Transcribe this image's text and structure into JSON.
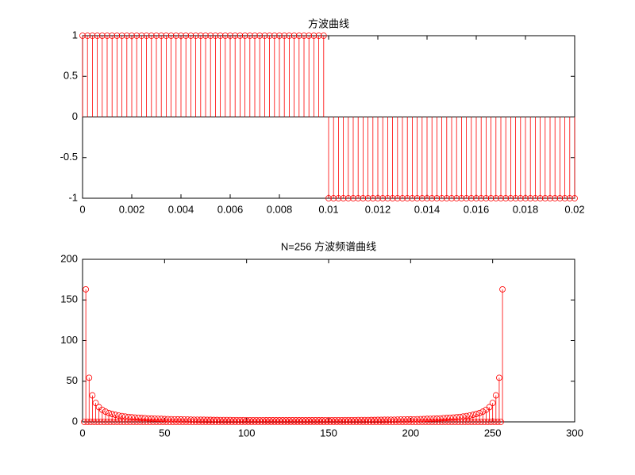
{
  "chart_data": [
    {
      "type": "stem",
      "title": "方波曲线",
      "color": "#ff0000",
      "x": [
        0,
        0.0002,
        0.0004,
        0.0006,
        0.0008,
        0.001,
        0.0012,
        0.0014,
        0.0016,
        0.0018,
        0.002,
        0.0022,
        0.0024,
        0.0026,
        0.0028,
        0.003,
        0.0032,
        0.0034,
        0.0036,
        0.0038,
        0.004,
        0.0042,
        0.0044,
        0.0046,
        0.0048,
        0.005,
        0.0052,
        0.0054,
        0.0056,
        0.0058,
        0.006,
        0.0062,
        0.0064,
        0.0066,
        0.0068,
        0.007,
        0.0072,
        0.0074,
        0.0076,
        0.0078,
        0.008,
        0.0082,
        0.0084,
        0.0086,
        0.0088,
        0.009,
        0.0092,
        0.0094,
        0.0096,
        0.0098,
        0.01,
        0.0102,
        0.0104,
        0.0106,
        0.0108,
        0.011,
        0.0112,
        0.0114,
        0.0116,
        0.0118,
        0.012,
        0.0122,
        0.0124,
        0.0126,
        0.0128,
        0.013,
        0.0132,
        0.0134,
        0.0136,
        0.0138,
        0.014,
        0.0142,
        0.0144,
        0.0146,
        0.0148,
        0.015,
        0.0152,
        0.0154,
        0.0156,
        0.0158,
        0.016,
        0.0162,
        0.0164,
        0.0166,
        0.0168,
        0.017,
        0.0172,
        0.0174,
        0.0176,
        0.0178,
        0.018,
        0.0182,
        0.0184,
        0.0186,
        0.0188,
        0.019,
        0.0192,
        0.0194,
        0.0196,
        0.0198,
        0.02
      ],
      "values": [
        1,
        1,
        1,
        1,
        1,
        1,
        1,
        1,
        1,
        1,
        1,
        1,
        1,
        1,
        1,
        1,
        1,
        1,
        1,
        1,
        1,
        1,
        1,
        1,
        1,
        1,
        1,
        1,
        1,
        1,
        1,
        1,
        1,
        1,
        1,
        1,
        1,
        1,
        1,
        1,
        1,
        1,
        1,
        1,
        1,
        1,
        1,
        1,
        1,
        1,
        -1,
        -1,
        -1,
        -1,
        -1,
        -1,
        -1,
        -1,
        -1,
        -1,
        -1,
        -1,
        -1,
        -1,
        -1,
        -1,
        -1,
        -1,
        -1,
        -1,
        -1,
        -1,
        -1,
        -1,
        -1,
        -1,
        -1,
        -1,
        -1,
        -1,
        -1,
        -1,
        -1,
        -1,
        -1,
        -1,
        -1,
        -1,
        -1,
        -1,
        -1,
        -1,
        -1,
        -1,
        -1,
        -1,
        -1,
        -1,
        -1,
        -1,
        -1
      ],
      "xlim": [
        0,
        0.02
      ],
      "xticks": [
        0,
        0.002,
        0.004,
        0.006,
        0.008,
        0.01,
        0.012,
        0.014,
        0.016,
        0.018,
        0.02
      ],
      "ylim": [
        -1,
        1
      ],
      "yticks": [
        -1,
        -0.5,
        0,
        0.5,
        1
      ]
    },
    {
      "type": "stem",
      "title": "N=256 方波频谱曲线",
      "color": "#ff0000",
      "x": [
        1,
        2,
        3,
        4,
        5,
        6,
        7,
        8,
        9,
        10,
        11,
        12,
        13,
        14,
        15,
        16,
        17,
        18,
        19,
        20,
        21,
        22,
        23,
        24,
        25,
        26,
        27,
        28,
        29,
        30,
        31,
        32,
        33,
        34,
        35,
        36,
        37,
        38,
        39,
        40,
        41,
        42,
        43,
        44,
        45,
        46,
        47,
        48,
        49,
        50,
        51,
        52,
        53,
        54,
        55,
        56,
        57,
        58,
        59,
        60,
        61,
        62,
        63,
        64,
        65,
        66,
        67,
        68,
        69,
        70,
        71,
        72,
        73,
        74,
        75,
        76,
        77,
        78,
        79,
        80,
        81,
        82,
        83,
        84,
        85,
        86,
        87,
        88,
        89,
        90,
        91,
        92,
        93,
        94,
        95,
        96,
        97,
        98,
        99,
        100,
        101,
        102,
        103,
        104,
        105,
        106,
        107,
        108,
        109,
        110,
        111,
        112,
        113,
        114,
        115,
        116,
        117,
        118,
        119,
        120,
        121,
        122,
        123,
        124,
        125,
        126,
        127,
        128,
        129,
        130,
        131,
        132,
        133,
        134,
        135,
        136,
        137,
        138,
        139,
        140,
        141,
        142,
        143,
        144,
        145,
        146,
        147,
        148,
        149,
        150,
        151,
        152,
        153,
        154,
        155,
        156,
        157,
        158,
        159,
        160,
        161,
        162,
        163,
        164,
        165,
        166,
        167,
        168,
        169,
        170,
        171,
        172,
        173,
        174,
        175,
        176,
        177,
        178,
        179,
        180,
        181,
        182,
        183,
        184,
        185,
        186,
        187,
        188,
        189,
        190,
        191,
        192,
        193,
        194,
        195,
        196,
        197,
        198,
        199,
        200,
        201,
        202,
        203,
        204,
        205,
        206,
        207,
        208,
        209,
        210,
        211,
        212,
        213,
        214,
        215,
        216,
        217,
        218,
        219,
        220,
        221,
        222,
        223,
        224,
        225,
        226,
        227,
        228,
        229,
        230,
        231,
        232,
        233,
        234,
        235,
        236,
        237,
        238,
        239,
        240,
        241,
        242,
        243,
        244,
        245,
        246,
        247,
        248,
        249,
        250,
        251,
        252,
        253,
        254,
        255,
        256
      ],
      "values": [
        0,
        163.0,
        0,
        54.3,
        0,
        32.6,
        0,
        23.3,
        0,
        18.1,
        0,
        14.9,
        0,
        12.6,
        0,
        10.9,
        0,
        9.7,
        0,
        8.7,
        0,
        7.8,
        0,
        7.2,
        0,
        6.6,
        0,
        6.1,
        0,
        5.7,
        0,
        5.4,
        0,
        5.1,
        0,
        4.8,
        0,
        4.6,
        0,
        4.3,
        0,
        4.1,
        0,
        4.0,
        0,
        3.8,
        0,
        3.7,
        0,
        3.5,
        0,
        3.4,
        0,
        3.3,
        0,
        3.2,
        0,
        3.1,
        0,
        3.0,
        0,
        2.9,
        0,
        2.9,
        0,
        2.8,
        0,
        2.7,
        0,
        2.7,
        0,
        2.6,
        0,
        2.6,
        0,
        2.5,
        0,
        2.5,
        0,
        2.4,
        0,
        2.4,
        0,
        2.3,
        0,
        2.3,
        0,
        2.3,
        0,
        2.3,
        0,
        2.2,
        0,
        2.2,
        0,
        2.2,
        0,
        2.2,
        0,
        2.1,
        0,
        2.1,
        0,
        2.1,
        0,
        2.1,
        0,
        2.1,
        0,
        2.1,
        0,
        2.0,
        0,
        2.0,
        0,
        2.0,
        0,
        2.0,
        0,
        2.0,
        0,
        2.0,
        0,
        2.0,
        0,
        2.0,
        0,
        2.0,
        0,
        2.0,
        0,
        2.0,
        0,
        2.0,
        0,
        2.0,
        0,
        2.0,
        0,
        2.0,
        0,
        2.0,
        0,
        2.0,
        0,
        2.0,
        0,
        2.1,
        0,
        2.1,
        0,
        2.1,
        0,
        2.1,
        0,
        2.1,
        0,
        2.1,
        0,
        2.2,
        0,
        2.2,
        0,
        2.2,
        0,
        2.2,
        0,
        2.3,
        0,
        2.3,
        0,
        2.3,
        0,
        2.3,
        0,
        2.4,
        0,
        2.4,
        0,
        2.5,
        0,
        2.5,
        0,
        2.6,
        0,
        2.6,
        0,
        2.7,
        0,
        2.7,
        0,
        2.8,
        0,
        2.9,
        0,
        2.9,
        0,
        3.0,
        0,
        3.1,
        0,
        3.2,
        0,
        3.3,
        0,
        3.4,
        0,
        3.5,
        0,
        3.7,
        0,
        3.8,
        0,
        4.0,
        0,
        4.1,
        0,
        4.3,
        0,
        4.6,
        0,
        4.8,
        0,
        5.1,
        0,
        5.4,
        0,
        5.7,
        0,
        6.1,
        0,
        6.6,
        0,
        7.2,
        0,
        7.8,
        0,
        8.7,
        0,
        9.7,
        0,
        10.9,
        0,
        12.6,
        0,
        14.9,
        0,
        18.1,
        0,
        23.3,
        0,
        32.6,
        0,
        54.3,
        0,
        163.0
      ],
      "xlim": [
        0,
        300
      ],
      "xticks": [
        0,
        50,
        100,
        150,
        200,
        250,
        300
      ],
      "ylim": [
        0,
        200
      ],
      "yticks": [
        0,
        50,
        100,
        150,
        200
      ]
    }
  ]
}
